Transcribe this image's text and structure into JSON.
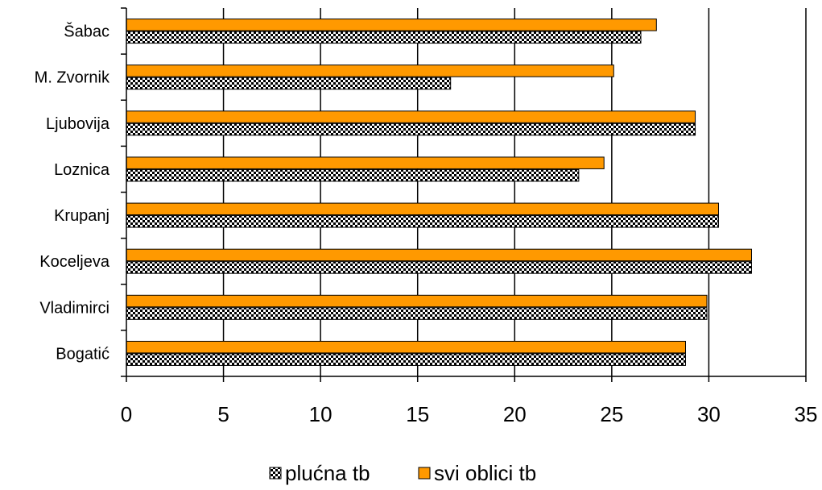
{
  "chart_data": {
    "type": "bar",
    "orientation": "horizontal",
    "categories": [
      "Šabac",
      "M. Zvornik",
      "Ljubovija",
      "Loznica",
      "Krupanj",
      "Koceljeva",
      "Vladimirci",
      "Bogatić"
    ],
    "series": [
      {
        "name": "plućna tb",
        "values": [
          26.5,
          16.7,
          29.3,
          23.3,
          30.5,
          32.2,
          29.9,
          28.8
        ],
        "color": "#ffffff",
        "pattern": "checker"
      },
      {
        "name": "svi oblici tb",
        "values": [
          27.3,
          25.1,
          29.3,
          24.6,
          30.5,
          32.2,
          29.9,
          28.8
        ],
        "color": "#ff9900"
      }
    ],
    "x_ticks": [
      "0",
      "5",
      "10",
      "15",
      "20",
      "25",
      "30",
      "35"
    ],
    "xlim": [
      0,
      35
    ],
    "grid": true,
    "legend": "bottom",
    "title": "",
    "xlabel": "",
    "ylabel": ""
  }
}
